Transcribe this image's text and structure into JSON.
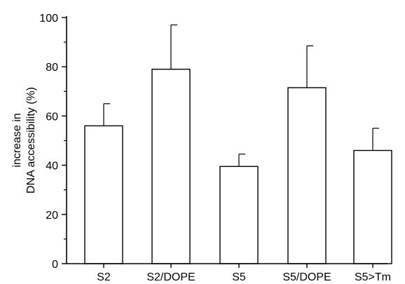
{
  "chart_data": {
    "type": "bar",
    "title": "",
    "xlabel": "",
    "ylabel": [
      "increase in",
      "DNA accessibility (%)"
    ],
    "categories": [
      "S2",
      "S2/DOPE",
      "S5",
      "S5/DOPE",
      "S5>Tm"
    ],
    "values": [
      56,
      79,
      39.5,
      71.5,
      46
    ],
    "errors": [
      9,
      18,
      5,
      17,
      9
    ],
    "ylim": [
      0,
      100
    ],
    "yticks": [
      0,
      20,
      40,
      60,
      80,
      100
    ],
    "grid": false,
    "bar_fill": "#ffffff",
    "bar_stroke": "#000000"
  }
}
